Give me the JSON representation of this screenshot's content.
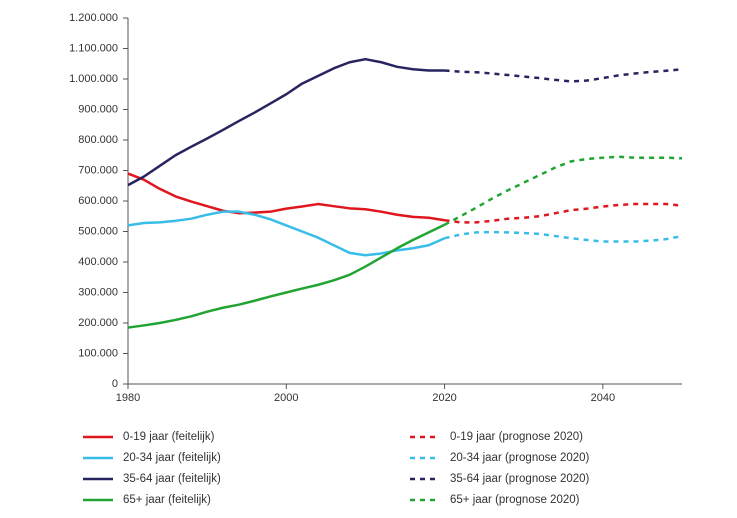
{
  "chart_data": {
    "type": "line",
    "xlim": [
      1980,
      2050
    ],
    "xticks": [
      1980,
      2000,
      2020,
      2040
    ],
    "ylim": [
      0,
      1200000
    ],
    "yticks": [
      0,
      {
        "value": 100000,
        "label": "100.000"
      },
      {
        "value": 200000,
        "label": "200.000"
      },
      {
        "value": 300000,
        "label": "300.000"
      },
      {
        "value": 400000,
        "label": "400.000"
      },
      {
        "value": 500000,
        "label": "500.000"
      },
      {
        "value": 600000,
        "label": "600.000"
      },
      {
        "value": 700000,
        "label": "700.000"
      },
      {
        "value": 800000,
        "label": "800.000"
      },
      {
        "value": 900000,
        "label": "900.000"
      },
      {
        "value": 1000000,
        "label": "1.000.000"
      },
      {
        "value": 1100000,
        "label": "1.100.000"
      },
      {
        "value": 1200000,
        "label": "1.200.000"
      }
    ],
    "series": [
      {
        "name": "0-19 jaar (feitelijk)",
        "color": "#e0161e",
        "dashed": false,
        "x": [
          1980,
          1982,
          1984,
          1986,
          1988,
          1990,
          1992,
          1994,
          1996,
          1998,
          2000,
          2002,
          2004,
          2006,
          2008,
          2010,
          2012,
          2014,
          2016,
          2018,
          2020
        ],
        "values": [
          690000,
          670000,
          640000,
          615000,
          598000,
          583000,
          568000,
          560000,
          562000,
          565000,
          575000,
          582000,
          590000,
          583000,
          576000,
          573000,
          565000,
          555000,
          548000,
          545000,
          537000
        ]
      },
      {
        "name": "20-34 jaar (feitelijk)",
        "color": "#38bde9",
        "dashed": false,
        "x": [
          1980,
          1982,
          1984,
          1986,
          1988,
          1990,
          1992,
          1994,
          1996,
          1998,
          2000,
          2002,
          2004,
          2006,
          2008,
          2010,
          2012,
          2014,
          2016,
          2018,
          2020
        ],
        "values": [
          520000,
          528000,
          530000,
          535000,
          542000,
          555000,
          565000,
          565000,
          555000,
          540000,
          520000,
          500000,
          480000,
          455000,
          430000,
          422000,
          428000,
          438000,
          445000,
          455000,
          478000
        ]
      },
      {
        "name": "35-64 jaar (feitelijk)",
        "color": "#27245f",
        "dashed": false,
        "x": [
          1980,
          1982,
          1984,
          1986,
          1988,
          1990,
          1992,
          1994,
          1996,
          1998,
          2000,
          2002,
          2004,
          2006,
          2008,
          2010,
          2012,
          2014,
          2016,
          2018,
          2020
        ],
        "values": [
          652000,
          680000,
          715000,
          750000,
          778000,
          805000,
          833000,
          862000,
          890000,
          920000,
          950000,
          985000,
          1010000,
          1035000,
          1055000,
          1065000,
          1055000,
          1040000,
          1032000,
          1028000,
          1028000
        ]
      },
      {
        "name": "65+ jaar (feitelijk)",
        "color": "#22a433",
        "dashed": false,
        "x": [
          1980,
          1982,
          1984,
          1986,
          1988,
          1990,
          1992,
          1994,
          1996,
          1998,
          2000,
          2002,
          2004,
          2006,
          2008,
          2010,
          2012,
          2014,
          2016,
          2018,
          2020
        ],
        "values": [
          185000,
          192000,
          200000,
          210000,
          222000,
          237000,
          250000,
          260000,
          273000,
          287000,
          300000,
          313000,
          325000,
          340000,
          358000,
          385000,
          415000,
          445000,
          472000,
          497000,
          522000
        ]
      },
      {
        "name": "0-19 jaar (prognose 2020)",
        "color": "#e0161e",
        "dashed": true,
        "x": [
          2020,
          2022,
          2024,
          2026,
          2028,
          2030,
          2032,
          2034,
          2036,
          2038,
          2040,
          2042,
          2044,
          2046,
          2048,
          2050
        ],
        "values": [
          537000,
          530000,
          530000,
          535000,
          542000,
          545000,
          550000,
          560000,
          570000,
          575000,
          582000,
          587000,
          590000,
          590000,
          590000,
          585000
        ]
      },
      {
        "name": "20-34 jaar (prognose 2020)",
        "color": "#38bde9",
        "dashed": true,
        "x": [
          2020,
          2022,
          2024,
          2026,
          2028,
          2030,
          2032,
          2034,
          2036,
          2038,
          2040,
          2042,
          2044,
          2046,
          2048,
          2050
        ],
        "values": [
          478000,
          490000,
          497000,
          498000,
          497000,
          495000,
          492000,
          485000,
          478000,
          472000,
          467000,
          467000,
          467000,
          470000,
          475000,
          485000
        ]
      },
      {
        "name": "35-64 jaar (prognose 2020)",
        "color": "#27245f",
        "dashed": true,
        "x": [
          2020,
          2022,
          2024,
          2026,
          2028,
          2030,
          2032,
          2034,
          2036,
          2038,
          2040,
          2042,
          2044,
          2046,
          2048,
          2050
        ],
        "values": [
          1028000,
          1024000,
          1022000,
          1018000,
          1013000,
          1008000,
          1003000,
          997000,
          992000,
          995000,
          1003000,
          1012000,
          1018000,
          1023000,
          1027000,
          1032000
        ]
      },
      {
        "name": "65+ jaar (prognose 2020)",
        "color": "#22a433",
        "dashed": true,
        "x": [
          2020,
          2022,
          2024,
          2026,
          2028,
          2030,
          2032,
          2034,
          2036,
          2038,
          2040,
          2042,
          2044,
          2046,
          2048,
          2050
        ],
        "values": [
          522000,
          550000,
          578000,
          608000,
          635000,
          660000,
          685000,
          710000,
          730000,
          738000,
          742000,
          745000,
          742000,
          742000,
          742000,
          740000
        ]
      }
    ]
  }
}
